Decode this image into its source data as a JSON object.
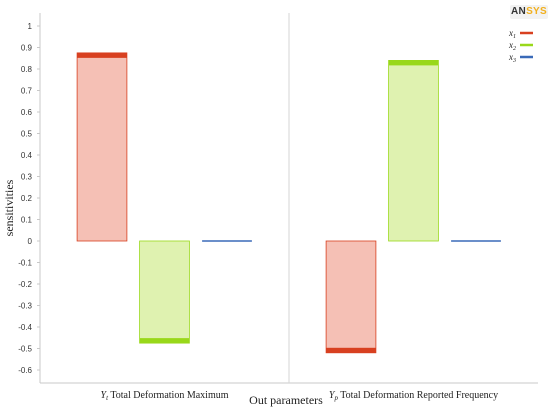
{
  "brand": {
    "logo_text_a": "AN",
    "logo_text_b": "SYS"
  },
  "chart_data": {
    "type": "bar",
    "title": "",
    "xlabel": "Out parameters",
    "ylabel": "sensitivities",
    "ylim": [
      -0.6,
      1.0
    ],
    "yticks": [
      "1",
      "0.9",
      "0.8",
      "0.7",
      "0.6",
      "0.5",
      "0.4",
      "0.3",
      "0.2",
      "0.1",
      "0",
      "-0.1",
      "-0.2",
      "-0.3",
      "-0.4",
      "-0.5",
      "-0.6"
    ],
    "grid": false,
    "legend_position": "top-right",
    "categories": [
      {
        "symbol": "Y",
        "sub": "t",
        "label": " Total Deformation Maximum"
      },
      {
        "symbol": "Y",
        "sub": "p",
        "label": " Total Deformation Reported Frequency"
      }
    ],
    "series": [
      {
        "name": "x1",
        "base": "x",
        "sub": "1",
        "values": [
          0.875,
          -0.52
        ],
        "fill": "#f5c0b5",
        "cap": "#d84020",
        "line": "#d84020"
      },
      {
        "name": "x2",
        "base": "x",
        "sub": "2",
        "values": [
          -0.475,
          0.84
        ],
        "fill": "#dff2b0",
        "cap": "#99d81a",
        "line": "#99d81a"
      },
      {
        "name": "x3",
        "base": "x",
        "sub": "3",
        "values": [
          0.0,
          0.0
        ],
        "fill": "#b8cce8",
        "cap": "#4f7fc2",
        "line": "#3a6ab8"
      }
    ]
  }
}
